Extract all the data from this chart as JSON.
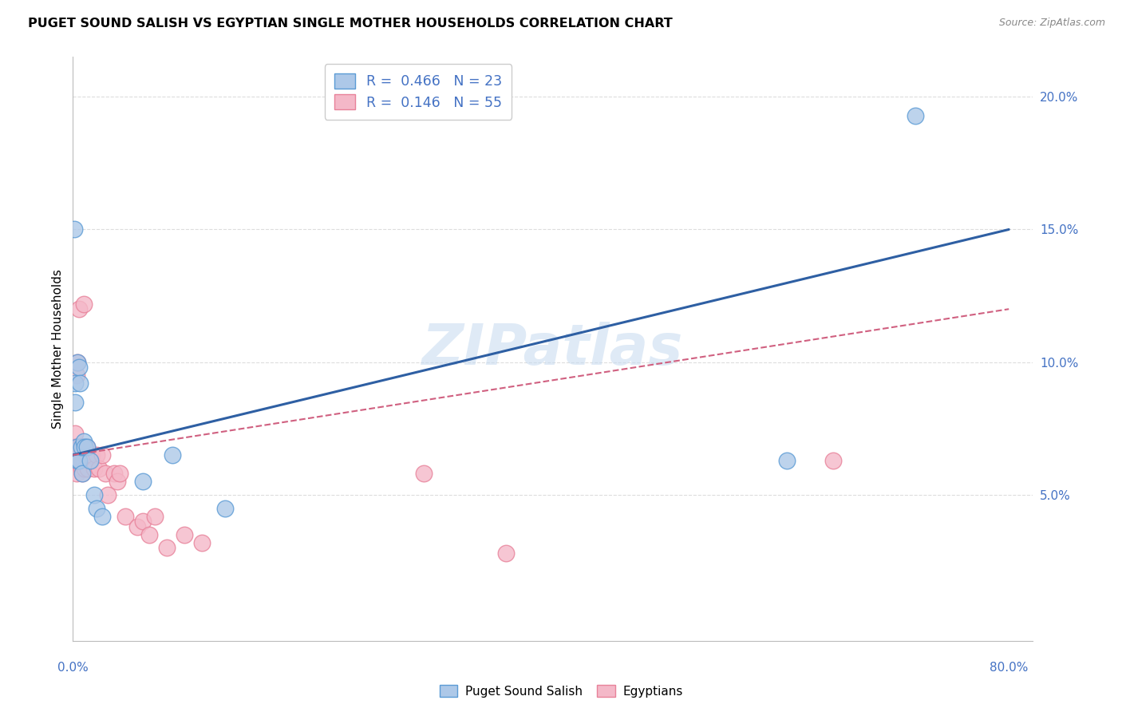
{
  "title": "PUGET SOUND SALISH VS EGYPTIAN SINGLE MOTHER HOUSEHOLDS CORRELATION CHART",
  "source": "Source: ZipAtlas.com",
  "ylabel": "Single Mother Households",
  "xlim": [
    0.0,
    0.82
  ],
  "ylim": [
    -0.005,
    0.215
  ],
  "yticks": [
    0.05,
    0.1,
    0.15,
    0.2
  ],
  "ytick_labels": [
    "5.0%",
    "10.0%",
    "15.0%",
    "20.0%"
  ],
  "xticks": [
    0.0,
    0.2,
    0.4,
    0.6,
    0.8
  ],
  "watermark": "ZIPatlas",
  "legend_items": [
    {
      "label": "Puget Sound Salish",
      "R": 0.466,
      "N": 23
    },
    {
      "label": "Egyptians",
      "R": 0.146,
      "N": 55
    }
  ],
  "blue_scatter_fill": "#adc8e8",
  "blue_scatter_edge": "#5b9bd5",
  "pink_scatter_fill": "#f4b8c8",
  "pink_scatter_edge": "#e8829a",
  "blue_line_color": "#2e5fa3",
  "pink_line_color": "#d06080",
  "axis_label_color": "#4472c4",
  "grid_color": "#dddddd",
  "blue_line_x0": 0.0,
  "blue_line_y0": 0.065,
  "blue_line_x1": 0.8,
  "blue_line_y1": 0.15,
  "pink_line_x0": 0.0,
  "pink_line_y0": 0.065,
  "pink_line_x1": 0.8,
  "pink_line_y1": 0.12,
  "puget_x": [
    0.001,
    0.002,
    0.002,
    0.003,
    0.004,
    0.004,
    0.005,
    0.005,
    0.006,
    0.007,
    0.008,
    0.009,
    0.01,
    0.012,
    0.015,
    0.018,
    0.02,
    0.025,
    0.06,
    0.085,
    0.13,
    0.61,
    0.72
  ],
  "puget_y": [
    0.15,
    0.085,
    0.092,
    0.068,
    0.063,
    0.1,
    0.098,
    0.063,
    0.092,
    0.068,
    0.058,
    0.07,
    0.068,
    0.068,
    0.063,
    0.05,
    0.045,
    0.042,
    0.055,
    0.065,
    0.045,
    0.063,
    0.193
  ],
  "egypt_x": [
    0.001,
    0.001,
    0.002,
    0.002,
    0.002,
    0.003,
    0.003,
    0.003,
    0.004,
    0.004,
    0.004,
    0.004,
    0.005,
    0.005,
    0.005,
    0.006,
    0.006,
    0.006,
    0.007,
    0.007,
    0.008,
    0.008,
    0.008,
    0.009,
    0.009,
    0.009,
    0.01,
    0.01,
    0.011,
    0.012,
    0.012,
    0.013,
    0.014,
    0.015,
    0.016,
    0.018,
    0.02,
    0.022,
    0.025,
    0.028,
    0.03,
    0.035,
    0.038,
    0.04,
    0.045,
    0.055,
    0.06,
    0.065,
    0.07,
    0.08,
    0.095,
    0.11,
    0.3,
    0.37,
    0.65
  ],
  "egypt_y": [
    0.063,
    0.068,
    0.063,
    0.068,
    0.073,
    0.058,
    0.065,
    0.095,
    0.063,
    0.065,
    0.068,
    0.1,
    0.065,
    0.068,
    0.12,
    0.063,
    0.065,
    0.068,
    0.06,
    0.065,
    0.058,
    0.063,
    0.068,
    0.063,
    0.122,
    0.068,
    0.06,
    0.065,
    0.065,
    0.065,
    0.068,
    0.06,
    0.065,
    0.065,
    0.065,
    0.06,
    0.065,
    0.06,
    0.065,
    0.058,
    0.05,
    0.058,
    0.055,
    0.058,
    0.042,
    0.038,
    0.04,
    0.035,
    0.042,
    0.03,
    0.035,
    0.032,
    0.058,
    0.028,
    0.063
  ]
}
